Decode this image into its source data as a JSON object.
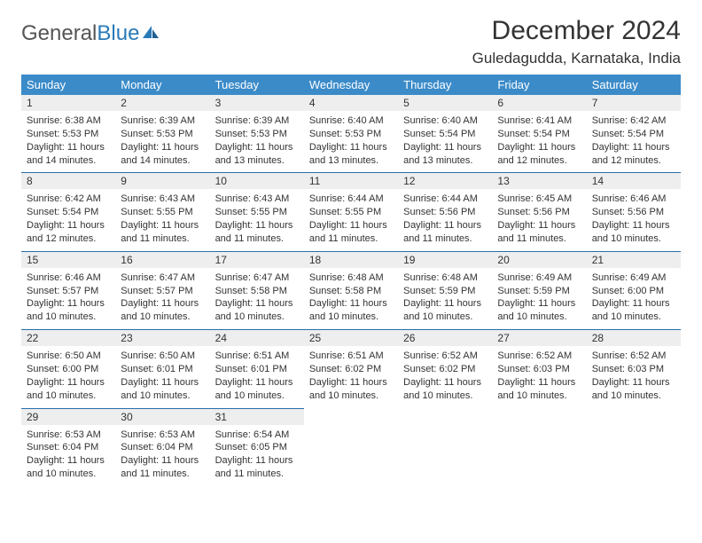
{
  "logo": {
    "text_gray": "General",
    "text_blue": "Blue"
  },
  "title": "December 2024",
  "location": "Guledagudda, Karnataka, India",
  "colors": {
    "header_bg": "#3b8bc9",
    "header_text": "#ffffff",
    "daynum_bg": "#eeeeee",
    "border": "#2a6fa8",
    "text": "#333333",
    "logo_blue": "#2a7ab8"
  },
  "day_names": [
    "Sunday",
    "Monday",
    "Tuesday",
    "Wednesday",
    "Thursday",
    "Friday",
    "Saturday"
  ],
  "weeks": [
    [
      {
        "n": "1",
        "sr": "Sunrise: 6:38 AM",
        "ss": "Sunset: 5:53 PM",
        "dl": "Daylight: 11 hours and 14 minutes."
      },
      {
        "n": "2",
        "sr": "Sunrise: 6:39 AM",
        "ss": "Sunset: 5:53 PM",
        "dl": "Daylight: 11 hours and 14 minutes."
      },
      {
        "n": "3",
        "sr": "Sunrise: 6:39 AM",
        "ss": "Sunset: 5:53 PM",
        "dl": "Daylight: 11 hours and 13 minutes."
      },
      {
        "n": "4",
        "sr": "Sunrise: 6:40 AM",
        "ss": "Sunset: 5:53 PM",
        "dl": "Daylight: 11 hours and 13 minutes."
      },
      {
        "n": "5",
        "sr": "Sunrise: 6:40 AM",
        "ss": "Sunset: 5:54 PM",
        "dl": "Daylight: 11 hours and 13 minutes."
      },
      {
        "n": "6",
        "sr": "Sunrise: 6:41 AM",
        "ss": "Sunset: 5:54 PM",
        "dl": "Daylight: 11 hours and 12 minutes."
      },
      {
        "n": "7",
        "sr": "Sunrise: 6:42 AM",
        "ss": "Sunset: 5:54 PM",
        "dl": "Daylight: 11 hours and 12 minutes."
      }
    ],
    [
      {
        "n": "8",
        "sr": "Sunrise: 6:42 AM",
        "ss": "Sunset: 5:54 PM",
        "dl": "Daylight: 11 hours and 12 minutes."
      },
      {
        "n": "9",
        "sr": "Sunrise: 6:43 AM",
        "ss": "Sunset: 5:55 PM",
        "dl": "Daylight: 11 hours and 11 minutes."
      },
      {
        "n": "10",
        "sr": "Sunrise: 6:43 AM",
        "ss": "Sunset: 5:55 PM",
        "dl": "Daylight: 11 hours and 11 minutes."
      },
      {
        "n": "11",
        "sr": "Sunrise: 6:44 AM",
        "ss": "Sunset: 5:55 PM",
        "dl": "Daylight: 11 hours and 11 minutes."
      },
      {
        "n": "12",
        "sr": "Sunrise: 6:44 AM",
        "ss": "Sunset: 5:56 PM",
        "dl": "Daylight: 11 hours and 11 minutes."
      },
      {
        "n": "13",
        "sr": "Sunrise: 6:45 AM",
        "ss": "Sunset: 5:56 PM",
        "dl": "Daylight: 11 hours and 11 minutes."
      },
      {
        "n": "14",
        "sr": "Sunrise: 6:46 AM",
        "ss": "Sunset: 5:56 PM",
        "dl": "Daylight: 11 hours and 10 minutes."
      }
    ],
    [
      {
        "n": "15",
        "sr": "Sunrise: 6:46 AM",
        "ss": "Sunset: 5:57 PM",
        "dl": "Daylight: 11 hours and 10 minutes."
      },
      {
        "n": "16",
        "sr": "Sunrise: 6:47 AM",
        "ss": "Sunset: 5:57 PM",
        "dl": "Daylight: 11 hours and 10 minutes."
      },
      {
        "n": "17",
        "sr": "Sunrise: 6:47 AM",
        "ss": "Sunset: 5:58 PM",
        "dl": "Daylight: 11 hours and 10 minutes."
      },
      {
        "n": "18",
        "sr": "Sunrise: 6:48 AM",
        "ss": "Sunset: 5:58 PM",
        "dl": "Daylight: 11 hours and 10 minutes."
      },
      {
        "n": "19",
        "sr": "Sunrise: 6:48 AM",
        "ss": "Sunset: 5:59 PM",
        "dl": "Daylight: 11 hours and 10 minutes."
      },
      {
        "n": "20",
        "sr": "Sunrise: 6:49 AM",
        "ss": "Sunset: 5:59 PM",
        "dl": "Daylight: 11 hours and 10 minutes."
      },
      {
        "n": "21",
        "sr": "Sunrise: 6:49 AM",
        "ss": "Sunset: 6:00 PM",
        "dl": "Daylight: 11 hours and 10 minutes."
      }
    ],
    [
      {
        "n": "22",
        "sr": "Sunrise: 6:50 AM",
        "ss": "Sunset: 6:00 PM",
        "dl": "Daylight: 11 hours and 10 minutes."
      },
      {
        "n": "23",
        "sr": "Sunrise: 6:50 AM",
        "ss": "Sunset: 6:01 PM",
        "dl": "Daylight: 11 hours and 10 minutes."
      },
      {
        "n": "24",
        "sr": "Sunrise: 6:51 AM",
        "ss": "Sunset: 6:01 PM",
        "dl": "Daylight: 11 hours and 10 minutes."
      },
      {
        "n": "25",
        "sr": "Sunrise: 6:51 AM",
        "ss": "Sunset: 6:02 PM",
        "dl": "Daylight: 11 hours and 10 minutes."
      },
      {
        "n": "26",
        "sr": "Sunrise: 6:52 AM",
        "ss": "Sunset: 6:02 PM",
        "dl": "Daylight: 11 hours and 10 minutes."
      },
      {
        "n": "27",
        "sr": "Sunrise: 6:52 AM",
        "ss": "Sunset: 6:03 PM",
        "dl": "Daylight: 11 hours and 10 minutes."
      },
      {
        "n": "28",
        "sr": "Sunrise: 6:52 AM",
        "ss": "Sunset: 6:03 PM",
        "dl": "Daylight: 11 hours and 10 minutes."
      }
    ],
    [
      {
        "n": "29",
        "sr": "Sunrise: 6:53 AM",
        "ss": "Sunset: 6:04 PM",
        "dl": "Daylight: 11 hours and 10 minutes."
      },
      {
        "n": "30",
        "sr": "Sunrise: 6:53 AM",
        "ss": "Sunset: 6:04 PM",
        "dl": "Daylight: 11 hours and 11 minutes."
      },
      {
        "n": "31",
        "sr": "Sunrise: 6:54 AM",
        "ss": "Sunset: 6:05 PM",
        "dl": "Daylight: 11 hours and 11 minutes."
      },
      null,
      null,
      null,
      null
    ]
  ]
}
